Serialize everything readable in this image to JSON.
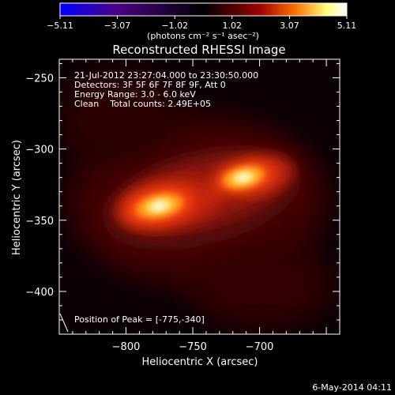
{
  "chart_data": {
    "type": "heatmap",
    "title": "Reconstructed RHESSI Image",
    "xlabel": "Heliocentric X (arcsec)",
    "ylabel": "Heliocentric Y (arcsec)",
    "xlim": [
      -850,
      -640
    ],
    "ylim": [
      -430,
      -237
    ],
    "x_ticks": [
      -800,
      -750,
      -700
    ],
    "x_tick_labels": [
      "−800",
      "−750",
      "−700"
    ],
    "y_ticks": [
      -250,
      -300,
      -350,
      -400
    ],
    "y_tick_labels": [
      "−250",
      "−300",
      "−350",
      "−400"
    ],
    "colorbar": {
      "min": -5.11,
      "max": 5.11,
      "ticks": [
        -5.11,
        -3.07,
        -1.02,
        1.02,
        3.07,
        5.11
      ],
      "tick_labels": [
        "−5.11",
        "−3.07",
        "−1.02",
        "1.02",
        "3.07",
        "5.11"
      ],
      "unit_label": "(photons cm⁻² s⁻¹ asec⁻²)",
      "colors": [
        "#0000ff",
        "#4b0082",
        "#000000",
        "#a00000",
        "#ff7000",
        "#ffff80",
        "#ffffff"
      ]
    },
    "sources": [
      {
        "x": -775,
        "y": -340,
        "peak": 5.11
      },
      {
        "x": -712,
        "y": -320,
        "peak": 4.6
      }
    ],
    "annotations": [
      "21-Jul-2012 23:27:04.000 to 23:30:50.000",
      "Detectors: 3F 5F 6F 7F 8F 9F, Att 0",
      "Energy Range: 3.0 - 6.0 keV",
      "Clean    Total counts: 2.49E+05"
    ],
    "peak_label": "Position of Peak = [-775,-340]",
    "footer": "6-May-2014 04:11"
  }
}
